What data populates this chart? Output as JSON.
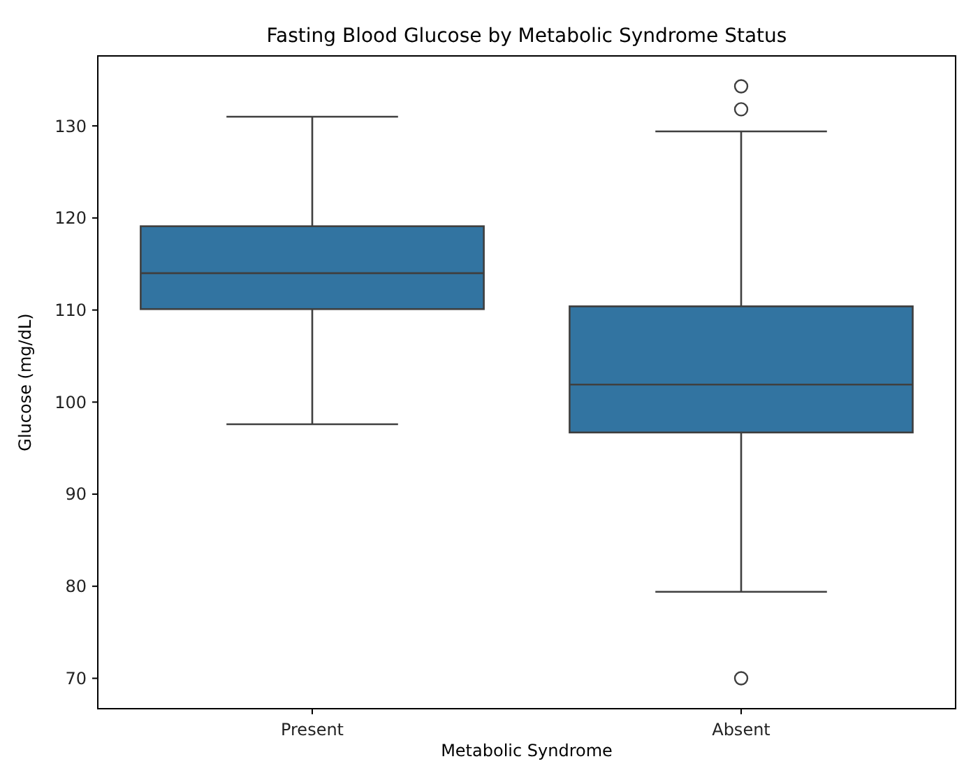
{
  "chart_data": {
    "type": "box",
    "title": "Fasting Blood Glucose by Metabolic Syndrome Status",
    "xlabel": "Metabolic Syndrome",
    "ylabel": "Glucose (mg/dL)",
    "categories": [
      "Present",
      "Absent"
    ],
    "color": "#3274a1",
    "boxes": [
      {
        "low": 97.6,
        "q1": 110.1,
        "median": 114,
        "q3": 119.1,
        "high": 131
      },
      {
        "low": 79.4,
        "q1": 96.7,
        "median": 101.9,
        "q3": 110.4,
        "high": 129.4,
        "outliers": [
          134.3,
          131.8,
          70
        ]
      }
    ],
    "ylim": [
      66.7,
      137.6
    ],
    "yticks": [
      70,
      80,
      90,
      100,
      110,
      120,
      130
    ],
    "grid": false
  }
}
